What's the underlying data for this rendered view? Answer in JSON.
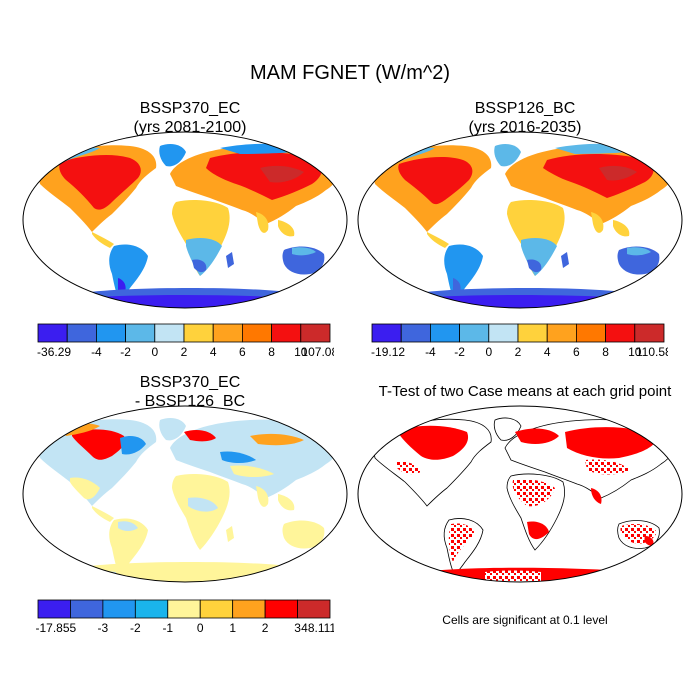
{
  "figure": {
    "title": "MAM FGNET (W/m^2)"
  },
  "panels": [
    {
      "id": "p1",
      "title_line1": "BSSP370_EC",
      "title_line2": "(yrs 2081-2100)",
      "colorbar": {
        "colors": [
          "#3b1ef0",
          "#3f66dd",
          "#2196f0",
          "#5cb8e8",
          "#c2e4f4",
          "#ffd23c",
          "#ffa21e",
          "#ff7800",
          "#f41010",
          "#cc2a2a"
        ],
        "labels": [
          "-36.29",
          "-4",
          "-2",
          "0",
          "2",
          "4",
          "6",
          "8",
          "10",
          "107.08"
        ]
      }
    },
    {
      "id": "p2",
      "title_line1": "BSSP126_BC",
      "title_line2": "(yrs 2016-2035)",
      "colorbar": {
        "colors": [
          "#3b1ef0",
          "#3f66dd",
          "#2196f0",
          "#5cb8e8",
          "#c2e4f4",
          "#ffd23c",
          "#ffa21e",
          "#ff7800",
          "#f41010",
          "#cc2a2a"
        ],
        "labels": [
          "-19.12",
          "-4",
          "-2",
          "0",
          "2",
          "4",
          "6",
          "8",
          "10",
          "110.58"
        ]
      }
    },
    {
      "id": "p3",
      "title_line1": "BSSP370_EC",
      "title_line2": "- BSSP126_BC",
      "colorbar": {
        "colors": [
          "#3b1ef0",
          "#3f66dd",
          "#2196f0",
          "#1ab4ec",
          "#fff59a",
          "#ffd23c",
          "#ffa21e",
          "#ff0000",
          "#cc2a2a"
        ],
        "labels": [
          "-17.855",
          "-3",
          "-2",
          "-1",
          "0",
          "1",
          "2",
          "3",
          "48.111"
        ]
      }
    },
    {
      "id": "p4",
      "title_line1": "T-Test of two Case means at each grid point",
      "note": "Cells are significant at 0.1 level"
    }
  ],
  "palette": {
    "red": "#ff0000",
    "dark_red": "#cc2a2a",
    "orange": "#ffa21e",
    "yellow": "#ffd23c",
    "light_yellow": "#fff59a",
    "light_blue": "#c2e4f4",
    "blue": "#5cb8e8",
    "mid_blue": "#2196f0",
    "deep_blue": "#3f66dd",
    "violet": "#3b1ef0",
    "ocean": "#ffffff",
    "coast": "#000000"
  }
}
